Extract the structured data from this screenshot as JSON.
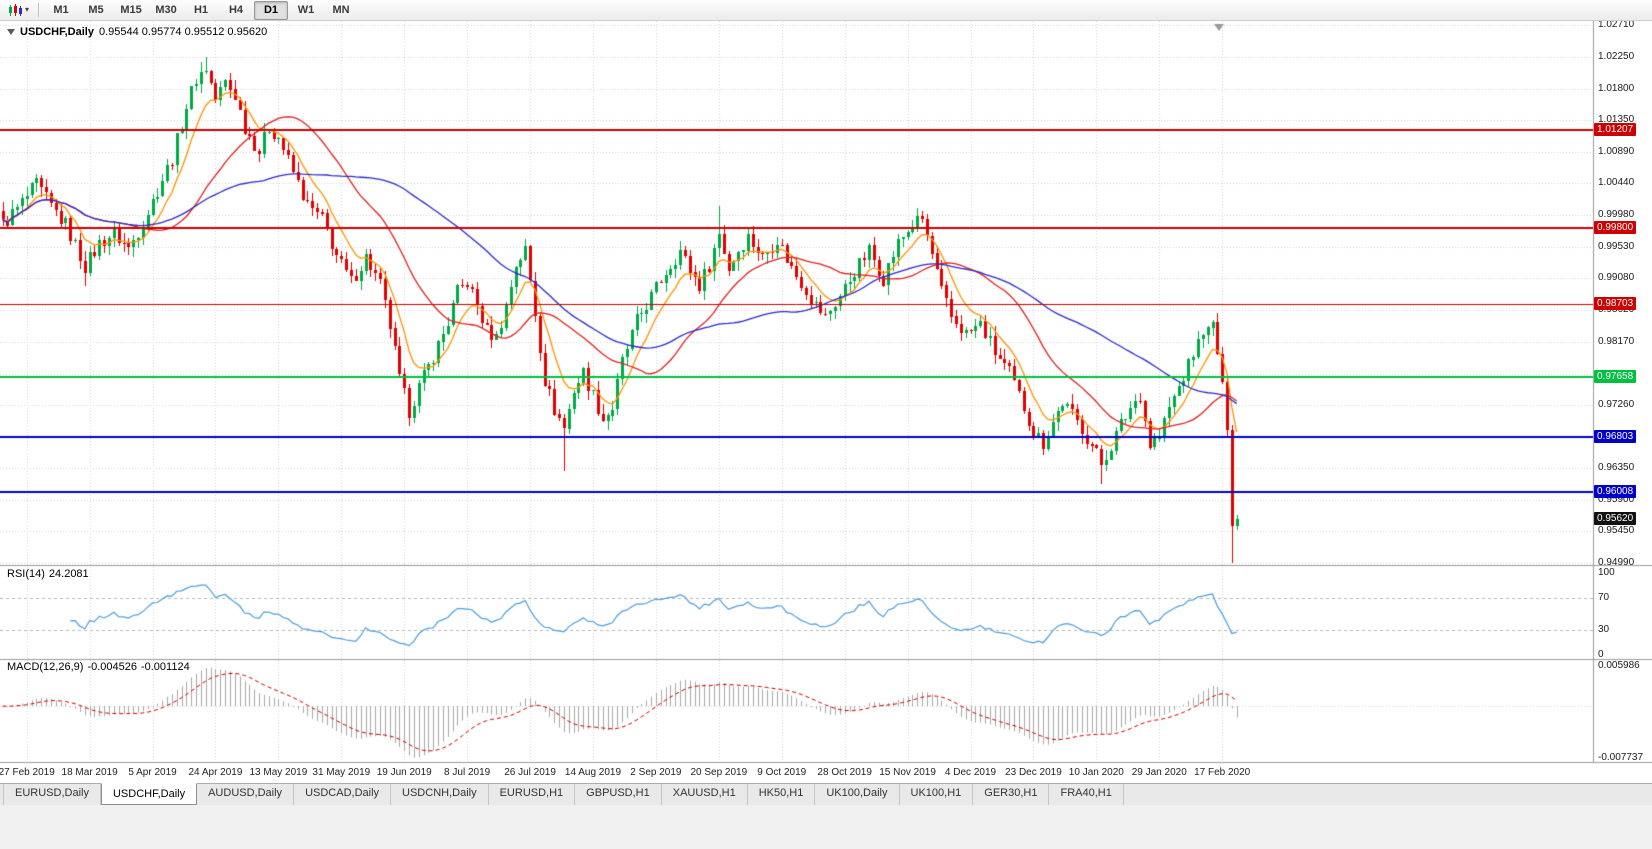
{
  "toolbar": {
    "periods": [
      "M1",
      "M5",
      "M15",
      "M30",
      "H1",
      "H4",
      "D1",
      "W1",
      "MN"
    ],
    "active_period": "D1"
  },
  "chart_header": {
    "symbol": "USDCHF,Daily",
    "open": "0.95544",
    "high": "0.95774",
    "low": "0.95512",
    "close": "0.95620",
    "ohlc": "0.95544 0.95774 0.95512 0.95620"
  },
  "chart_data": {
    "type": "candlestick",
    "symbol": "USDCHF",
    "timeframe": "Daily",
    "candle_count": 256,
    "last_candle_ohlc": {
      "open": 0.95544,
      "high": 0.95774,
      "low": 0.95512,
      "close": 0.9562
    },
    "price_range": {
      "top": 1.02715,
      "bottom": 0.94961
    },
    "y_ticks": [
      {
        "text": "1.02710",
        "price": 1.0271
      },
      {
        "text": "1.02250",
        "price": 1.0225
      },
      {
        "text": "1.01800",
        "price": 1.018
      },
      {
        "text": "1.01350",
        "price": 1.0135
      },
      {
        "text": "1.00890",
        "price": 1.0089
      },
      {
        "text": "1.00440",
        "price": 1.0044
      },
      {
        "text": "0.99980",
        "price": 0.9998
      },
      {
        "text": "0.99530",
        "price": 0.9953
      },
      {
        "text": "0.99080",
        "price": 0.9908
      },
      {
        "text": "0.98620",
        "price": 0.9862
      },
      {
        "text": "0.98170",
        "price": 0.9817
      },
      {
        "text": "0.97260",
        "price": 0.9726
      },
      {
        "text": "0.96350",
        "price": 0.9635
      },
      {
        "text": "0.95900",
        "price": 0.959
      },
      {
        "text": "0.95450",
        "price": 0.9545
      },
      {
        "text": "0.94990",
        "price": 0.9499
      }
    ],
    "grid_only_prices": [
      0.9771,
      0.968
    ],
    "x_ticks": [
      {
        "text": "27 Feb 2019",
        "index": 5
      },
      {
        "text": "18 Mar 2019",
        "index": 18
      },
      {
        "text": "5 Apr 2019",
        "index": 31
      },
      {
        "text": "24 Apr 2019",
        "index": 44
      },
      {
        "text": "13 May 2019",
        "index": 57
      },
      {
        "text": "31 May 2019",
        "index": 70
      },
      {
        "text": "19 Jun 2019",
        "index": 83
      },
      {
        "text": "8 Jul 2019",
        "index": 96
      },
      {
        "text": "26 Jul 2019",
        "index": 109
      },
      {
        "text": "14 Aug 2019",
        "index": 122
      },
      {
        "text": "2 Sep 2019",
        "index": 135
      },
      {
        "text": "20 Sep 2019",
        "index": 148
      },
      {
        "text": "9 Oct 2019",
        "index": 161
      },
      {
        "text": "28 Oct 2019",
        "index": 174
      },
      {
        "text": "15 Nov 2019",
        "index": 187
      },
      {
        "text": "4 Dec 2019",
        "index": 200
      },
      {
        "text": "23 Dec 2019",
        "index": 213
      },
      {
        "text": "10 Jan 2020",
        "index": 226
      },
      {
        "text": "29 Jan 2020",
        "index": 239
      },
      {
        "text": "17 Feb 2020",
        "index": 252
      }
    ],
    "anchors": [
      [
        0,
        0.9985
      ],
      [
        3,
        1.0008
      ],
      [
        7,
        1.0042
      ],
      [
        10,
        1.001
      ],
      [
        13,
        0.9985
      ],
      [
        17,
        0.9925
      ],
      [
        20,
        0.9958
      ],
      [
        23,
        0.9972
      ],
      [
        26,
        0.995
      ],
      [
        29,
        0.9988
      ],
      [
        32,
        1.0035
      ],
      [
        35,
        1.008
      ],
      [
        38,
        1.0155
      ],
      [
        40,
        1.0195
      ],
      [
        42,
        1.021
      ],
      [
        44,
        1.0165
      ],
      [
        46,
        1.019
      ],
      [
        48,
        1.017
      ],
      [
        50,
        1.0125
      ],
      [
        53,
        1.009
      ],
      [
        55,
        1.0125
      ],
      [
        57,
        1.011
      ],
      [
        60,
        1.006
      ],
      [
        63,
        1.0012
      ],
      [
        66,
        0.9992
      ],
      [
        69,
        0.994
      ],
      [
        72,
        0.9902
      ],
      [
        75,
        0.9938
      ],
      [
        78,
        0.9898
      ],
      [
        80,
        0.984
      ],
      [
        82,
        0.9762
      ],
      [
        84,
        0.9718
      ],
      [
        86,
        0.9752
      ],
      [
        88,
        0.978
      ],
      [
        90,
        0.9812
      ],
      [
        92,
        0.9845
      ],
      [
        94,
        0.9888
      ],
      [
        96,
        0.9902
      ],
      [
        98,
        0.9868
      ],
      [
        100,
        0.9832
      ],
      [
        102,
        0.9822
      ],
      [
        104,
        0.9868
      ],
      [
        106,
        0.9928
      ],
      [
        108,
        0.9948
      ],
      [
        110,
        0.9858
      ],
      [
        112,
        0.9762
      ],
      [
        114,
        0.972
      ],
      [
        116,
        0.9692
      ],
      [
        118,
        0.9748
      ],
      [
        120,
        0.9772
      ],
      [
        122,
        0.974
      ],
      [
        124,
        0.9705
      ],
      [
        126,
        0.9722
      ],
      [
        128,
        0.9788
      ],
      [
        131,
        0.9846
      ],
      [
        134,
        0.9882
      ],
      [
        137,
        0.9918
      ],
      [
        140,
        0.9948
      ],
      [
        142,
        0.992
      ],
      [
        144,
        0.9898
      ],
      [
        146,
        0.9928
      ],
      [
        148,
        0.9972
      ],
      [
        150,
        0.9922
      ],
      [
        152,
        0.9948
      ],
      [
        154,
        0.9968
      ],
      [
        157,
        0.9938
      ],
      [
        160,
        0.9965
      ],
      [
        163,
        0.9922
      ],
      [
        166,
        0.9892
      ],
      [
        168,
        0.9868
      ],
      [
        170,
        0.9852
      ],
      [
        173,
        0.9882
      ],
      [
        176,
        0.9918
      ],
      [
        179,
        0.9948
      ],
      [
        182,
        0.9908
      ],
      [
        185,
        0.9958
      ],
      [
        188,
        0.9985
      ],
      [
        190,
        0.9992
      ],
      [
        192,
        0.9942
      ],
      [
        194,
        0.9888
      ],
      [
        196,
        0.9852
      ],
      [
        199,
        0.9828
      ],
      [
        202,
        0.9842
      ],
      [
        205,
        0.9802
      ],
      [
        208,
        0.9772
      ],
      [
        211,
        0.9722
      ],
      [
        213,
        0.9688
      ],
      [
        215,
        0.9672
      ],
      [
        217,
        0.9702
      ],
      [
        219,
        0.973
      ],
      [
        221,
        0.9712
      ],
      [
        223,
        0.9692
      ],
      [
        225,
        0.9668
      ],
      [
        227,
        0.9642
      ],
      [
        229,
        0.9668
      ],
      [
        231,
        0.9698
      ],
      [
        233,
        0.9722
      ],
      [
        235,
        0.9742
      ],
      [
        237,
        0.9668
      ],
      [
        239,
        0.9682
      ],
      [
        241,
        0.9722
      ],
      [
        243,
        0.9752
      ],
      [
        245,
        0.9782
      ],
      [
        247,
        0.982
      ],
      [
        250,
        0.9845
      ],
      [
        251,
        0.98
      ],
      [
        252,
        0.9758
      ],
      [
        253,
        0.9692
      ],
      [
        254,
        0.9554
      ],
      [
        255,
        0.9562
      ]
    ],
    "wicks": [
      [
        17,
        "low",
        0.9896
      ],
      [
        41,
        "high",
        1.0219
      ],
      [
        42,
        "high",
        1.0226
      ],
      [
        116,
        "low",
        0.9631
      ],
      [
        148,
        "high",
        1.0012
      ],
      [
        227,
        "low",
        0.9613
      ],
      [
        254,
        "low",
        0.95
      ]
    ],
    "noise_amp": 0.0022,
    "wick_amp": 0.0014,
    "noise_damp_after": 246,
    "colors": {
      "up": "#00a846",
      "down": "#e00000",
      "grid": "#d6d6d6"
    },
    "moving_averages": [
      {
        "period": 8,
        "type": "ema",
        "color": "#ff9400"
      },
      {
        "period": 25,
        "type": "sma",
        "color": "#dd2222"
      },
      {
        "period": 55,
        "type": "sma",
        "color": "#2c2cc8"
      }
    ],
    "hlines": [
      {
        "price": 1.01207,
        "label": "1.01207",
        "color": "#cc0000",
        "width": 2
      },
      {
        "price": 0.998,
        "label": "0.99800",
        "color": "#cc0000",
        "width": 2
      },
      {
        "price": 0.98703,
        "label": "0.98703",
        "color": "#cc0000",
        "width": 1
      },
      {
        "price": 0.97658,
        "label": "0.97658",
        "color": "#00c040",
        "width": 2
      },
      {
        "price": 0.96803,
        "label": "0.96803",
        "color": "#0000c8",
        "width": 2
      },
      {
        "price": 0.96008,
        "label": "0.96008",
        "color": "#0000c8",
        "width": 2
      }
    ],
    "current_price": {
      "label": "0.95620",
      "price": 0.9562,
      "color": "#111111"
    },
    "indicators": {
      "rsi": {
        "label": "RSI(14)",
        "display_value": "24.2081",
        "period": 14,
        "levels": [
          30,
          70
        ],
        "range": [
          0,
          100
        ],
        "color": "#4f9ed9",
        "ticks": [
          {
            "text": "100",
            "v": 100
          },
          {
            "text": "70",
            "v": 70
          },
          {
            "text": "30",
            "v": 30
          },
          {
            "text": "0",
            "v": 0
          }
        ]
      },
      "macd": {
        "label": "MACD(12,26,9)",
        "display_main": "-0.004526",
        "display_signal": "-0.001124",
        "fast": 12,
        "slow": 26,
        "signal": 9,
        "range": [
          -0.007737,
          0.005986
        ],
        "scale_top": "0.005986",
        "scale_bottom": "-0.007737",
        "hist_color": "#a8a8a8",
        "signal_color": "#cc0000"
      }
    }
  },
  "tabs": {
    "items": [
      "EURUSD,Daily",
      "USDCHF,Daily",
      "AUDUSD,Daily",
      "USDCAD,Daily",
      "USDCNH,Daily",
      "EURUSD,H1",
      "GBPUSD,H1",
      "XAUUSD,H1",
      "HK50,H1",
      "UK100,Daily",
      "UK100,H1",
      "GER30,H1",
      "FRA40,H1"
    ],
    "active": "USDCHF,Daily"
  }
}
